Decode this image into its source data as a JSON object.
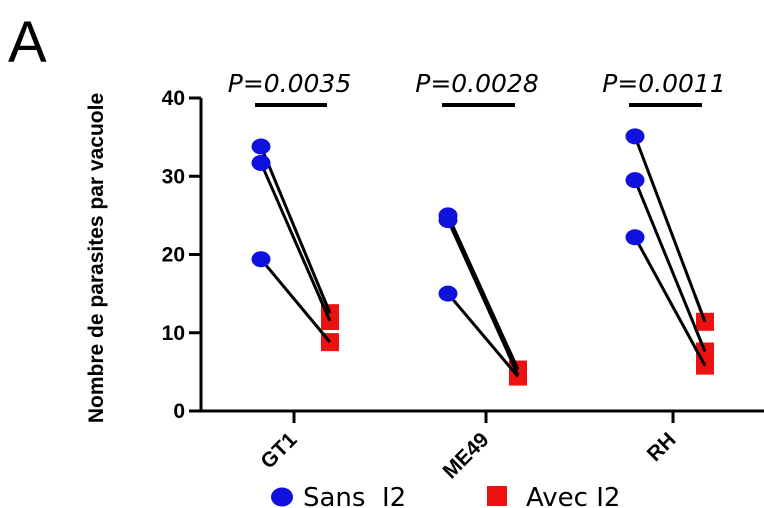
{
  "panel_letter": "A",
  "colors": {
    "sans": "#1111dd",
    "avec": "#ee1111",
    "axis": "#000000"
  },
  "chart_data": {
    "type": "scatter",
    "title": "",
    "ylabel": "Nombre de parasites par vacuole",
    "xlabel": "",
    "ylim": [
      0,
      40
    ],
    "yticks": [
      0,
      10,
      20,
      30,
      40
    ],
    "categories": [
      "GT1",
      "ME49",
      "RH"
    ],
    "series": [
      {
        "name": "Sans  I2",
        "marker": "circle",
        "color": "#1111dd"
      },
      {
        "name": "Avec I2",
        "marker": "square",
        "color": "#ee1111"
      }
    ],
    "pairs": [
      {
        "category": "GT1",
        "sans": 33.8,
        "avec": 12.5
      },
      {
        "category": "GT1",
        "sans": 31.7,
        "avec": 11.5
      },
      {
        "category": "GT1",
        "sans": 19.4,
        "avec": 8.8
      },
      {
        "category": "ME49",
        "sans": 25.0,
        "avec": 5.3
      },
      {
        "category": "ME49",
        "sans": 24.4,
        "avec": 4.6
      },
      {
        "category": "ME49",
        "sans": 15.0,
        "avec": 4.4
      },
      {
        "category": "RH",
        "sans": 35.1,
        "avec": 11.4
      },
      {
        "category": "RH",
        "sans": 29.5,
        "avec": 7.6
      },
      {
        "category": "RH",
        "sans": 22.2,
        "avec": 5.8
      }
    ],
    "annotations": [
      {
        "category": "GT1",
        "text": "P=0.0035"
      },
      {
        "category": "ME49",
        "text": "P=0.0028"
      },
      {
        "category": "RH",
        "text": "P=0.0011"
      }
    ],
    "legend_position": "bottom"
  }
}
